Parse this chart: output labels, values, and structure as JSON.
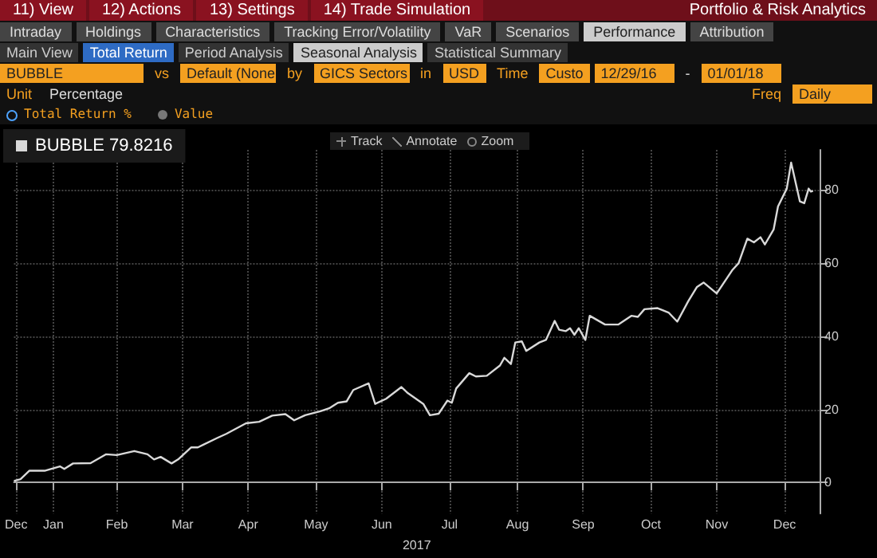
{
  "chart_data": {
    "type": "line",
    "xlabel": "2017",
    "legend": "top left",
    "grid": true,
    "marker": "none",
    "line_style": "solid",
    "annotations": [
      "11) View",
      "12) Actions",
      "13) Settings",
      "14) Trade Simulation",
      "Portfolio & Risk Analytics",
      "Intraday",
      "Holdings",
      "Characteristics",
      "Tracking Error/Volatility",
      "VaR",
      "Scenarios",
      "Performance",
      "Attribution",
      "Main View",
      "Total Return",
      "Period Analysis",
      "Seasonal Analysis",
      "Statistical Summary",
      "BUBBLE",
      "vs",
      "Default (None",
      "by",
      "GICS Sectors",
      "in",
      "USD",
      "Time",
      "Custo",
      "12/29/16",
      "-",
      "01/01/18",
      "Unit",
      "Percentage",
      "Freq",
      "Daily",
      "Total Return %",
      "Value",
      "Track",
      "Annotate",
      "Zoom"
    ],
    "xlim": [
      "2016-12-29",
      "2018-01-01"
    ],
    "xticks": [
      {
        "value": "2016-12-30",
        "label": "Dec"
      },
      {
        "value": "2017-01-16",
        "label": "Jan"
      },
      {
        "value": "2017-02-14",
        "label": "Feb"
      },
      {
        "value": "2017-03-16",
        "label": "Mar"
      },
      {
        "value": "2017-04-15",
        "label": "Apr"
      },
      {
        "value": "2017-05-16",
        "label": "May"
      },
      {
        "value": "2017-06-15",
        "label": "Jun"
      },
      {
        "value": "2017-07-16",
        "label": "Jul"
      },
      {
        "value": "2017-08-16",
        "label": "Aug"
      },
      {
        "value": "2017-09-15",
        "label": "Sep"
      },
      {
        "value": "2017-10-16",
        "label": "Oct"
      },
      {
        "value": "2017-11-15",
        "label": "Nov"
      },
      {
        "value": "2017-12-16",
        "label": "Dec"
      }
    ],
    "ylim": [
      -8.5,
      91
    ],
    "yticks": [
      0,
      20,
      40,
      60,
      80
    ],
    "x": [
      "2016-12-29",
      "2017-01-01",
      "2017-01-05",
      "2017-01-12",
      "2017-01-19",
      "2017-01-21",
      "2017-01-25",
      "2017-02-02",
      "2017-02-09",
      "2017-02-14",
      "2017-02-22",
      "2017-02-28",
      "2017-03-03",
      "2017-03-06",
      "2017-03-11",
      "2017-03-14",
      "2017-03-20",
      "2017-03-23",
      "2017-04-01",
      "2017-04-05",
      "2017-04-14",
      "2017-04-20",
      "2017-04-26",
      "2017-05-02",
      "2017-05-06",
      "2017-05-11",
      "2017-05-18",
      "2017-05-22",
      "2017-05-26",
      "2017-05-30",
      "2017-06-02",
      "2017-06-09",
      "2017-06-12",
      "2017-06-17",
      "2017-06-24",
      "2017-06-27",
      "2017-07-04",
      "2017-07-07",
      "2017-07-11",
      "2017-07-15",
      "2017-07-17",
      "2017-07-19",
      "2017-07-25",
      "2017-07-28",
      "2017-08-02",
      "2017-08-08",
      "2017-08-10",
      "2017-08-13",
      "2017-08-15",
      "2017-08-18",
      "2017-08-20",
      "2017-08-26",
      "2017-08-29",
      "2017-09-02",
      "2017-09-04",
      "2017-09-07",
      "2017-09-09",
      "2017-09-11",
      "2017-09-13",
      "2017-09-16",
      "2017-09-18",
      "2017-09-25",
      "2017-10-01",
      "2017-10-07",
      "2017-10-10",
      "2017-10-13",
      "2017-10-19",
      "2017-10-24",
      "2017-10-28",
      "2017-11-02",
      "2017-11-06",
      "2017-11-09",
      "2017-11-15",
      "2017-11-22",
      "2017-11-25",
      "2017-11-29",
      "2017-12-02",
      "2017-12-05",
      "2017-12-07",
      "2017-12-11",
      "2017-12-13",
      "2017-12-17",
      "2017-12-19",
      "2017-12-23",
      "2017-12-25",
      "2017-12-27",
      "2017-12-28",
      "2017-12-29"
    ],
    "series": [
      {
        "name": "BUBBLE 79.8216",
        "color": "#d9d9d9",
        "values": [
          0.4,
          0.9,
          3.2,
          3.2,
          4.4,
          3.7,
          5.2,
          5.3,
          7.7,
          7.5,
          8.6,
          7.7,
          6.3,
          7.0,
          5.2,
          6.3,
          9.6,
          9.6,
          12.2,
          13.3,
          16.2,
          16.6,
          18.3,
          18.7,
          17.0,
          18.4,
          19.5,
          20.3,
          21.8,
          22.2,
          25.3,
          27.1,
          21.5,
          22.9,
          26.1,
          24.4,
          21.5,
          18.4,
          18.8,
          22.4,
          21.8,
          25.7,
          29.9,
          29.0,
          29.2,
          32.0,
          34.1,
          32.4,
          38.3,
          38.6,
          36.0,
          38.3,
          39.0,
          44.2,
          41.8,
          41.4,
          42.2,
          40.4,
          42.2,
          39.0,
          45.6,
          43.2,
          43.2,
          45.6,
          45.3,
          47.4,
          47.7,
          46.5,
          44.0,
          49.6,
          53.5,
          54.7,
          51.7,
          58.0,
          60.0,
          66.7,
          65.7,
          67.1,
          65.1,
          69.2,
          75.5,
          80.4,
          87.5,
          76.9,
          76.4,
          80.4,
          79.6,
          79.8216
        ]
      }
    ]
  }
}
